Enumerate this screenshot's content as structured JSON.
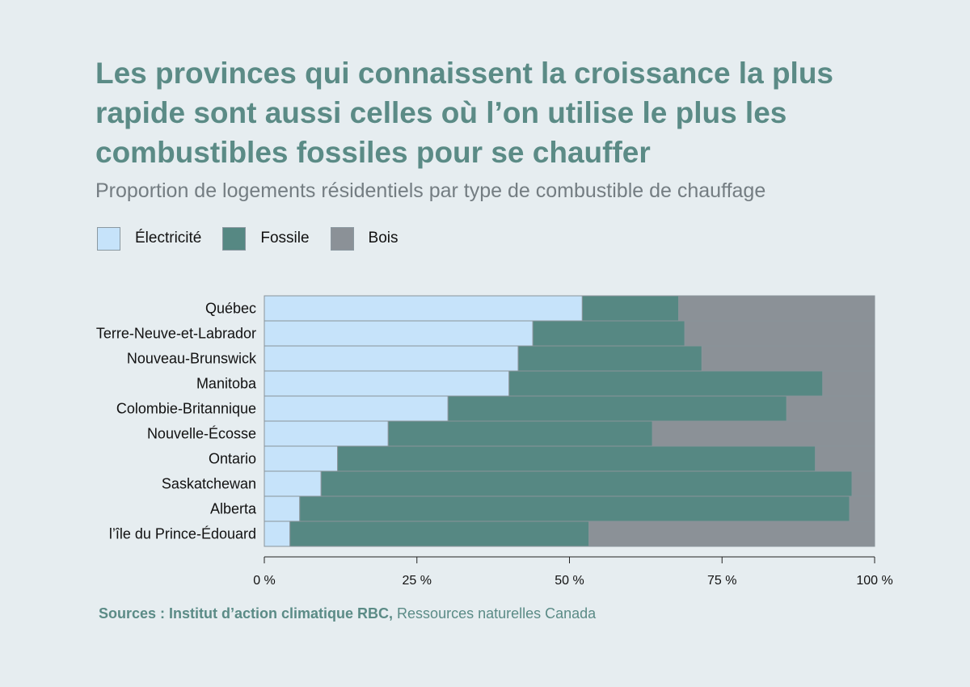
{
  "header": {
    "title": "Les provinces qui connaissent la croissance la plus rapide sont aussi celles où l’on utilise le plus les combustibles fossiles pour se chauffer",
    "subtitle": "Proportion de logements résidentiels par type de combustible de chauffage"
  },
  "footer": {
    "source_bold": "Sources : Institut d’action climatique RBC,",
    "source_rest": " Ressources naturelles Canada"
  },
  "colors": {
    "background": "#e6edf0",
    "title": "#5b8b86",
    "electricite": "#c6e3fa",
    "fossile": "#568883",
    "bois": "#8b9197"
  },
  "chart_data": {
    "type": "bar",
    "orientation": "horizontal",
    "stacked": true,
    "categories": [
      "Québec",
      "Terre-Neuve-et-Labrador",
      "Nouveau-Brunswick",
      "Manitoba",
      "Colombie-Britannique",
      "Nouvelle-Écosse",
      "Ontario",
      "Saskatchewan",
      "Alberta",
      "l’île du Prince-Édouard"
    ],
    "series": [
      {
        "name": "Électricité",
        "color": "#c6e3fa",
        "values": [
          52.1,
          44.0,
          41.6,
          40.1,
          30.1,
          20.3,
          12.0,
          9.3,
          5.8,
          4.2
        ]
      },
      {
        "name": "Fossile",
        "color": "#568883",
        "values": [
          15.8,
          24.9,
          30.1,
          51.4,
          55.5,
          43.3,
          78.3,
          87.0,
          90.1,
          49.0
        ]
      },
      {
        "name": "Bois",
        "color": "#8b9197",
        "values": [
          32.1,
          31.1,
          28.3,
          8.5,
          14.4,
          36.4,
          9.7,
          3.7,
          4.1,
          46.8
        ]
      }
    ],
    "xlim": [
      0,
      100
    ],
    "xticks": [
      0,
      25,
      50,
      75,
      100
    ],
    "xtick_labels": [
      "0 %",
      "25 %",
      "50 %",
      "75 %",
      "100 %"
    ],
    "legend_position": "top-left",
    "grid": false
  }
}
